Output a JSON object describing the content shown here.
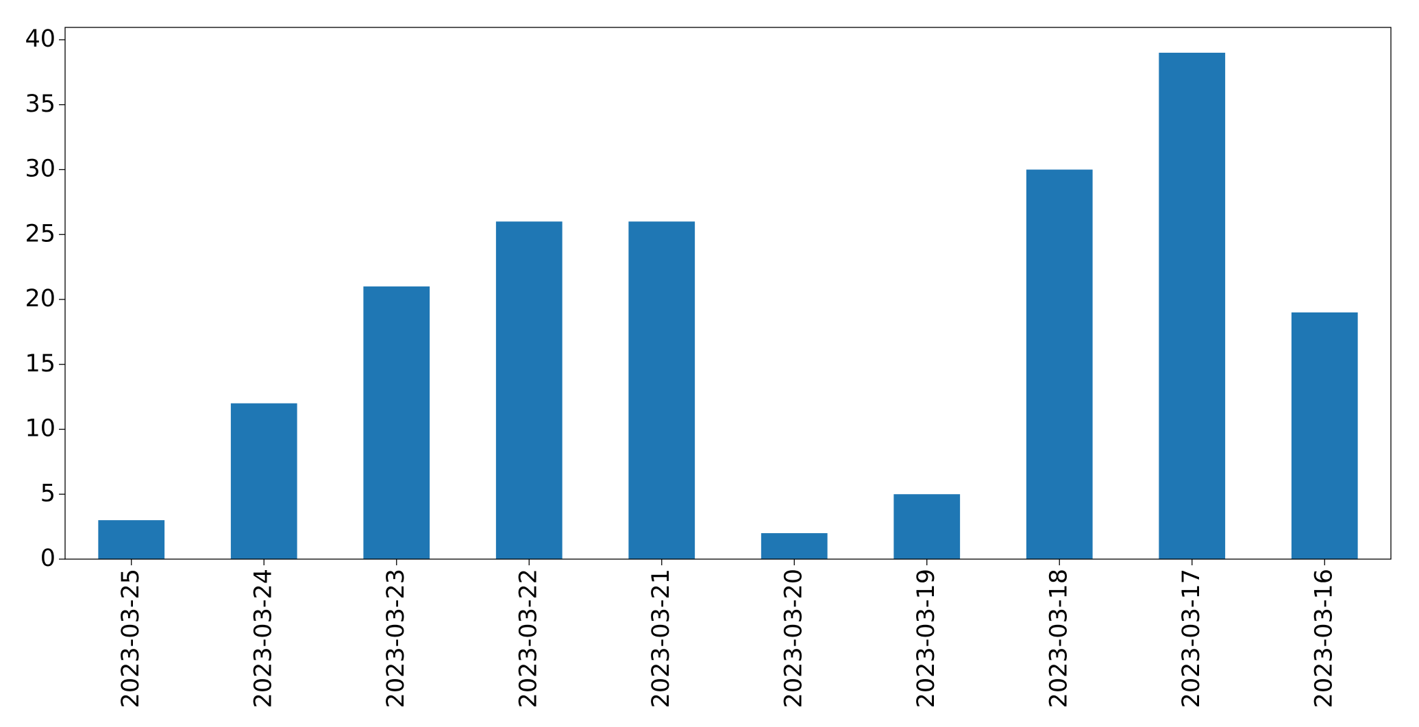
{
  "chart_data": {
    "type": "bar",
    "categories": [
      "2023-03-25",
      "2023-03-24",
      "2023-03-23",
      "2023-03-22",
      "2023-03-21",
      "2023-03-20",
      "2023-03-19",
      "2023-03-18",
      "2023-03-17",
      "2023-03-16"
    ],
    "values": [
      3,
      12,
      21,
      26,
      26,
      2,
      5,
      30,
      39,
      19
    ],
    "color": "#1f77b4",
    "ylim": [
      0,
      40.95
    ],
    "yticks": [
      0,
      5,
      10,
      15,
      20,
      25,
      30,
      35,
      40
    ],
    "grid": false
  }
}
